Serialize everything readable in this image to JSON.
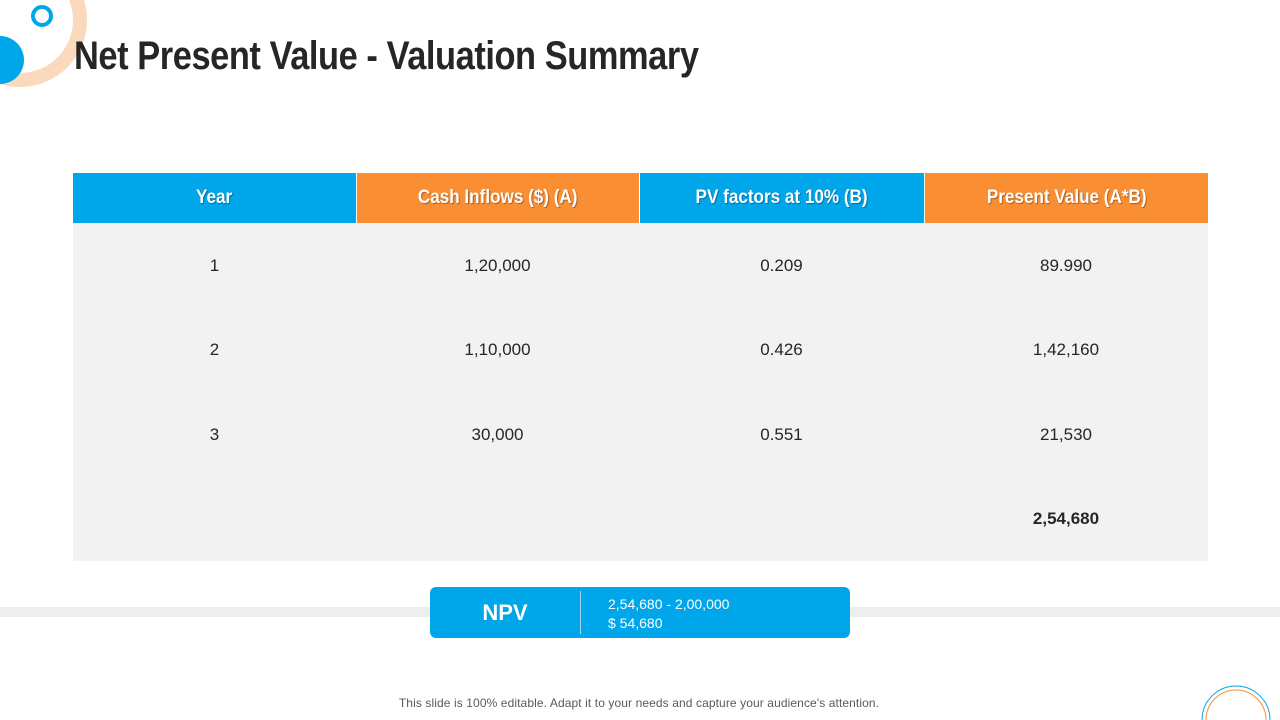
{
  "title": "Net Present Value - Valuation Summary",
  "colors": {
    "blue": "#00a6ea",
    "orange": "#fa8e32",
    "row_bg": "#f2f2f2",
    "text": "#262626"
  },
  "table": {
    "headers": [
      "Year",
      "Cash Inflows ($) (A)",
      "PV factors at 10% (B)",
      "Present Value (A*B)"
    ],
    "rows": [
      [
        "1",
        "1,20,000",
        "0.209",
        "89.990"
      ],
      [
        "2",
        "1,10,000",
        "0.426",
        "1,42,160"
      ],
      [
        "3",
        "30,000",
        "0.551",
        "21,530"
      ]
    ],
    "total": "2,54,680"
  },
  "npv": {
    "label": "NPV",
    "line1": "2,54,680 - 2,00,000",
    "line2": "$ 54,680"
  },
  "footer": "This slide is 100% editable. Adapt it to your needs and capture your audience's attention."
}
